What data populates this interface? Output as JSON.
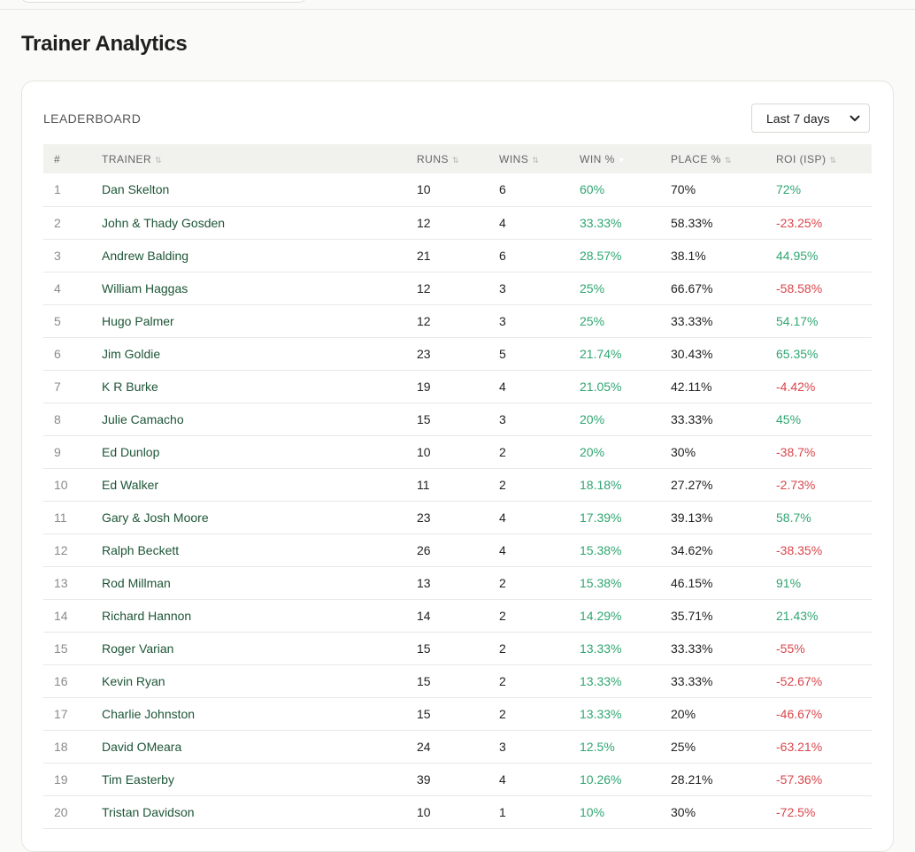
{
  "page": {
    "title": "Trainer Analytics"
  },
  "leaderboard": {
    "label": "LEADERBOARD",
    "period": {
      "selected": "Last 7 days",
      "chevron_icon": "chevron-down-icon"
    },
    "columns": [
      "#",
      "TRAINER",
      "RUNS",
      "WINS",
      "WIN %",
      "PLACE %",
      "ROI (ISP)"
    ],
    "sorted_by": "WIN %",
    "rows": [
      {
        "rank": "1",
        "trainer": "Dan Skelton",
        "runs": "10",
        "wins": "6",
        "win_pct": "60%",
        "place_pct": "70%",
        "roi": "72%"
      },
      {
        "rank": "2",
        "trainer": "John & Thady Gosden",
        "runs": "12",
        "wins": "4",
        "win_pct": "33.33%",
        "place_pct": "58.33%",
        "roi": "-23.25%"
      },
      {
        "rank": "3",
        "trainer": "Andrew Balding",
        "runs": "21",
        "wins": "6",
        "win_pct": "28.57%",
        "place_pct": "38.1%",
        "roi": "44.95%"
      },
      {
        "rank": "4",
        "trainer": "William Haggas",
        "runs": "12",
        "wins": "3",
        "win_pct": "25%",
        "place_pct": "66.67%",
        "roi": "-58.58%"
      },
      {
        "rank": "5",
        "trainer": "Hugo Palmer",
        "runs": "12",
        "wins": "3",
        "win_pct": "25%",
        "place_pct": "33.33%",
        "roi": "54.17%"
      },
      {
        "rank": "6",
        "trainer": "Jim Goldie",
        "runs": "23",
        "wins": "5",
        "win_pct": "21.74%",
        "place_pct": "30.43%",
        "roi": "65.35%"
      },
      {
        "rank": "7",
        "trainer": "K R Burke",
        "runs": "19",
        "wins": "4",
        "win_pct": "21.05%",
        "place_pct": "42.11%",
        "roi": "-4.42%"
      },
      {
        "rank": "8",
        "trainer": "Julie Camacho",
        "runs": "15",
        "wins": "3",
        "win_pct": "20%",
        "place_pct": "33.33%",
        "roi": "45%"
      },
      {
        "rank": "9",
        "trainer": "Ed Dunlop",
        "runs": "10",
        "wins": "2",
        "win_pct": "20%",
        "place_pct": "30%",
        "roi": "-38.7%"
      },
      {
        "rank": "10",
        "trainer": "Ed Walker",
        "runs": "11",
        "wins": "2",
        "win_pct": "18.18%",
        "place_pct": "27.27%",
        "roi": "-2.73%"
      },
      {
        "rank": "11",
        "trainer": "Gary & Josh Moore",
        "runs": "23",
        "wins": "4",
        "win_pct": "17.39%",
        "place_pct": "39.13%",
        "roi": "58.7%"
      },
      {
        "rank": "12",
        "trainer": "Ralph Beckett",
        "runs": "26",
        "wins": "4",
        "win_pct": "15.38%",
        "place_pct": "34.62%",
        "roi": "-38.35%"
      },
      {
        "rank": "13",
        "trainer": "Rod Millman",
        "runs": "13",
        "wins": "2",
        "win_pct": "15.38%",
        "place_pct": "46.15%",
        "roi": "91%"
      },
      {
        "rank": "14",
        "trainer": "Richard Hannon",
        "runs": "14",
        "wins": "2",
        "win_pct": "14.29%",
        "place_pct": "35.71%",
        "roi": "21.43%"
      },
      {
        "rank": "15",
        "trainer": "Roger Varian",
        "runs": "15",
        "wins": "2",
        "win_pct": "13.33%",
        "place_pct": "33.33%",
        "roi": "-55%"
      },
      {
        "rank": "16",
        "trainer": "Kevin Ryan",
        "runs": "15",
        "wins": "2",
        "win_pct": "13.33%",
        "place_pct": "33.33%",
        "roi": "-52.67%"
      },
      {
        "rank": "17",
        "trainer": "Charlie Johnston",
        "runs": "15",
        "wins": "2",
        "win_pct": "13.33%",
        "place_pct": "20%",
        "roi": "-46.67%"
      },
      {
        "rank": "18",
        "trainer": "David OMeara",
        "runs": "24",
        "wins": "3",
        "win_pct": "12.5%",
        "place_pct": "25%",
        "roi": "-63.21%"
      },
      {
        "rank": "19",
        "trainer": "Tim Easterby",
        "runs": "39",
        "wins": "4",
        "win_pct": "10.26%",
        "place_pct": "28.21%",
        "roi": "-57.36%"
      },
      {
        "rank": "20",
        "trainer": "Tristan Davidson",
        "runs": "10",
        "wins": "1",
        "win_pct": "10%",
        "place_pct": "30%",
        "roi": "-72.5%"
      }
    ]
  },
  "colors": {
    "positive": "#2fa671",
    "negative": "#d9464b",
    "trainer_link": "#1d5536"
  }
}
